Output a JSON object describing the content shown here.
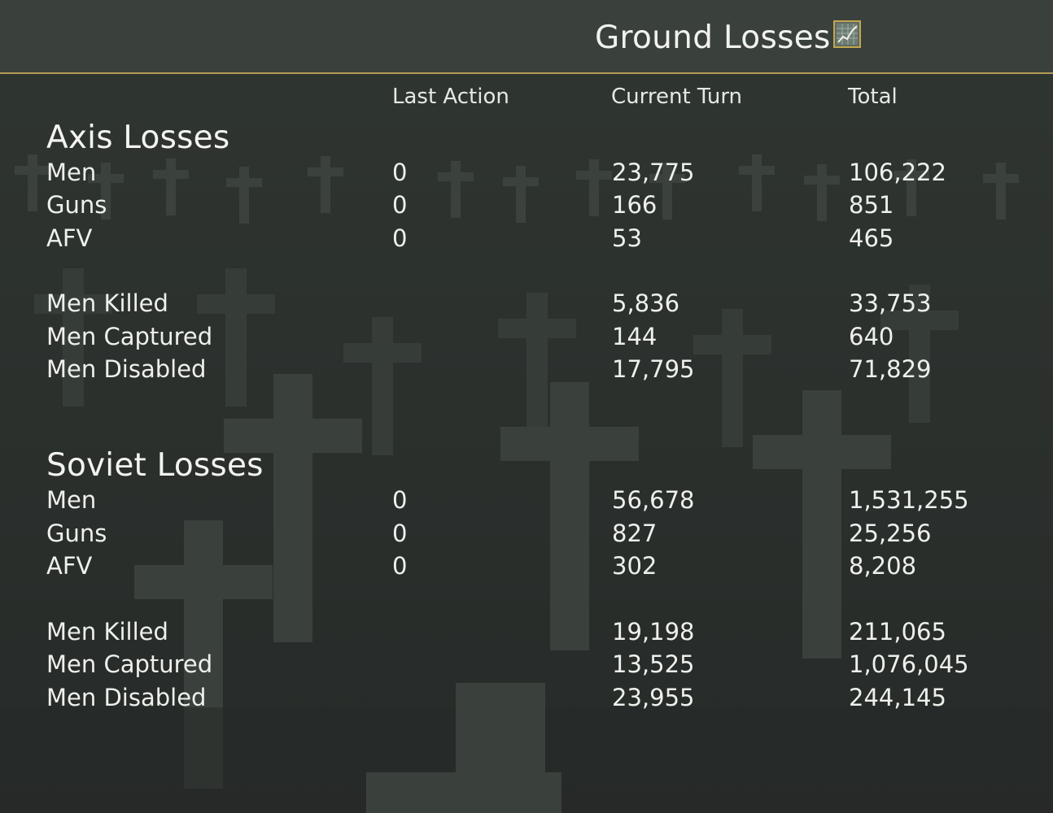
{
  "header": {
    "title": "Ground Losses",
    "graph_button_icon": "line-graph-icon"
  },
  "columns": {
    "last_action": "Last Action",
    "current_turn": "Current Turn",
    "total": "Total"
  },
  "axis": {
    "title": "Axis Losses",
    "rows": [
      {
        "label": "Men",
        "last": "0",
        "turn": "23,775",
        "total": "106,222"
      },
      {
        "label": "Guns",
        "last": "0",
        "turn": "166",
        "total": "851"
      },
      {
        "label": "AFV",
        "last": "0",
        "turn": "53",
        "total": "465"
      },
      {
        "label": "Men Killed",
        "last": "",
        "turn": "5,836",
        "total": "33,753"
      },
      {
        "label": "Men Captured",
        "last": "",
        "turn": "144",
        "total": "640"
      },
      {
        "label": "Men Disabled",
        "last": "",
        "turn": "17,795",
        "total": "71,829"
      }
    ]
  },
  "soviet": {
    "title": "Soviet Losses",
    "rows": [
      {
        "label": "Men",
        "last": "0",
        "turn": "56,678",
        "total": "1,531,255"
      },
      {
        "label": "Guns",
        "last": "0",
        "turn": "827",
        "total": "25,256"
      },
      {
        "label": "AFV",
        "last": "0",
        "turn": "302",
        "total": "8,208"
      },
      {
        "label": "Men Killed",
        "last": "",
        "turn": "19,198",
        "total": "211,065"
      },
      {
        "label": "Men Captured",
        "last": "",
        "turn": "13,525",
        "total": "1,076,045"
      },
      {
        "label": "Men Disabled",
        "last": "",
        "turn": "23,955",
        "total": "244,145"
      }
    ]
  },
  "colors": {
    "background": "#2a2f2c",
    "header": "#3a403c",
    "accent_line": "#b59a55",
    "text": "#eef0eb"
  }
}
